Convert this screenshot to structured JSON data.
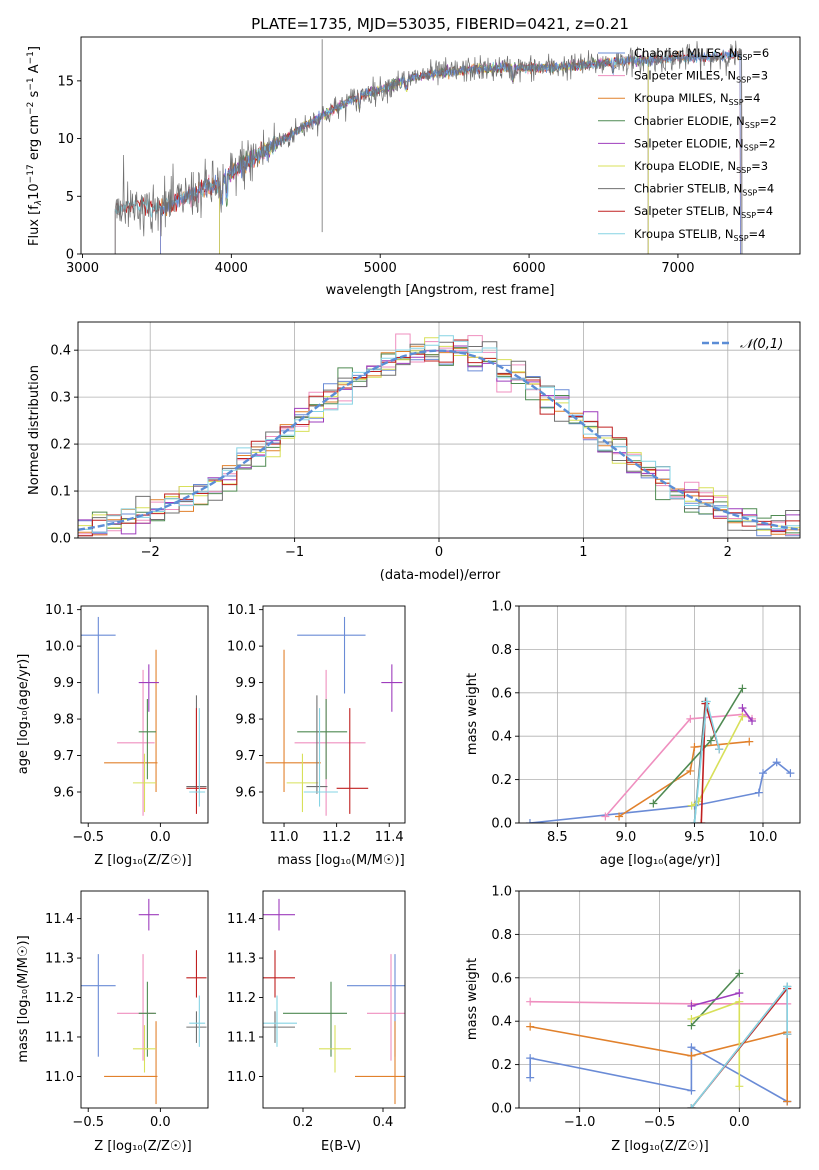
{
  "chart_data": [
    {
      "type": "line",
      "title": "PLATE=1735, MJD=53035, FIBERID=0421, z=0.21",
      "xlabel": "wavelength [Angstrom, rest frame]",
      "ylabel_parts": [
        "Flux [f",
        "λ",
        "10",
        "−17",
        " erg cm",
        "−2",
        " s",
        "−1",
        " A",
        "−1",
        "]"
      ],
      "xlim": [
        2990,
        7820
      ],
      "ylim": [
        0,
        18.8
      ],
      "xticks": [
        3000,
        4000,
        5000,
        6000,
        7000
      ],
      "yticks": [
        0,
        5,
        10,
        15
      ],
      "grid": false,
      "legend": "upper right",
      "spike": {
        "x": 4610,
        "ymin": 1.9,
        "ymax": 18.6
      },
      "series": [
        {
          "name": "Chabrier MILES",
          "nssp": "6",
          "color": "#6a8bd6",
          "x": [
            3525,
            7420
          ]
        },
        {
          "name": "Salpeter MILES",
          "nssp": "3",
          "color": "#ef8fbf",
          "x": [
            3525,
            7420
          ]
        },
        {
          "name": "Kroupa MILES",
          "nssp": "4",
          "color": "#e1812c",
          "x": [
            3525,
            7420
          ]
        },
        {
          "name": "Chabrier ELODIE",
          "nssp": "2",
          "color": "#4f8a52",
          "x": [
            3920,
            6800
          ]
        },
        {
          "name": "Salpeter ELODIE",
          "nssp": "2",
          "color": "#9e3dbd",
          "x": [
            3920,
            6800
          ]
        },
        {
          "name": "Kroupa ELODIE",
          "nssp": "3",
          "color": "#d8e05a",
          "x": [
            3920,
            6800
          ]
        },
        {
          "name": "Chabrier STELIB",
          "nssp": "4",
          "color": "#707070",
          "x": [
            3220,
            7430
          ]
        },
        {
          "name": "Salpeter STELIB",
          "nssp": "4",
          "color": "#c02020",
          "x": [
            3220,
            7430
          ]
        },
        {
          "name": "Kroupa STELIB",
          "nssp": "4",
          "color": "#86d4e4",
          "x": [
            3220,
            7430
          ]
        }
      ],
      "continuum": {
        "x": [
          3220,
          3300,
          3400,
          3500,
          3600,
          3700,
          3800,
          3900,
          4000,
          4100,
          4200,
          4300,
          4400,
          4500,
          4600,
          4700,
          4800,
          4900,
          5000,
          5100,
          5200,
          5300,
          5400,
          5500,
          5600,
          5700,
          5800,
          5900,
          6000,
          6200,
          6400,
          6600,
          6800,
          7000,
          7200,
          7430
        ],
        "y": [
          3.8,
          4.1,
          4.2,
          4.0,
          4.3,
          5.0,
          5.6,
          5.9,
          7.0,
          8.0,
          8.7,
          9.6,
          10.3,
          11.2,
          11.9,
          12.6,
          13.3,
          13.9,
          14.2,
          14.8,
          15.2,
          15.5,
          15.7,
          15.8,
          16.0,
          16.0,
          16.1,
          16.1,
          16.1,
          16.2,
          16.4,
          16.7,
          16.8,
          17.0,
          17.0,
          17.3
        ]
      }
    },
    {
      "type": "bar",
      "xlabel": "(data-model)/error",
      "ylabel": "Normed distribution",
      "xlim": [
        -2.5,
        2.5
      ],
      "ylim": [
        0,
        0.46
      ],
      "xticks": [
        -2,
        -1,
        0,
        1,
        2
      ],
      "xticklabels": [
        "−2",
        "−1",
        "0",
        "1",
        "2"
      ],
      "yticks": [
        0.0,
        0.1,
        0.2,
        0.3,
        0.4
      ],
      "yticklabels": [
        "0.0",
        "0.1",
        "0.2",
        "0.3",
        "0.4"
      ],
      "grid": true,
      "legend": "upper right",
      "legend_label": "𝒩(0,1)",
      "gauss_color": "#5b8dd6",
      "bin_width": 0.1,
      "bin_start": -2.5
    },
    {
      "type": "scatter",
      "xlabel": "Z [log₁₀(Z/Z☉)]",
      "ylabel": "age  [log₁₀(age/yr)]",
      "xlim": [
        -0.55,
        0.33
      ],
      "ylim": [
        9.515,
        10.11
      ],
      "xticks": [
        -0.5,
        0.0
      ],
      "xticklabels": [
        "−0.5",
        "0.0"
      ],
      "yticks": [
        9.6,
        9.7,
        9.8,
        9.9,
        10.0,
        10.1
      ],
      "yticklabels": [
        "9.6",
        "9.7",
        "9.8",
        "9.9",
        "10.0",
        "10.1"
      ],
      "grid": false
    },
    {
      "type": "scatter",
      "xlabel": "mass [log₁₀(M/M☉)]",
      "xlim": [
        10.92,
        11.46
      ],
      "ylim": [
        9.515,
        10.11
      ],
      "xticks": [
        11.0,
        11.2,
        11.4
      ],
      "xticklabels": [
        "11.0",
        "11.2",
        "11.4"
      ],
      "yticks": [
        9.6,
        9.7,
        9.8,
        9.9,
        10.0,
        10.1
      ],
      "yticklabels": [
        "9.6",
        "9.7",
        "9.8",
        "9.9",
        "10.0",
        "10.1"
      ],
      "grid": false
    },
    {
      "type": "line",
      "xlabel": "age  [log₁₀(age/yr)]",
      "ylabel": "mass weight",
      "xlim": [
        8.22,
        10.27
      ],
      "ylim": [
        0,
        1
      ],
      "xticks": [
        8.5,
        9.0,
        9.5,
        10.0
      ],
      "xticklabels": [
        "8.5",
        "9.0",
        "9.5",
        "10.0"
      ],
      "yticks": [
        0.0,
        0.2,
        0.4,
        0.6,
        0.8,
        1.0
      ],
      "yticklabels": [
        "0.0",
        "0.2",
        "0.4",
        "0.6",
        "0.8",
        "1.0"
      ],
      "grid": true
    },
    {
      "type": "scatter",
      "xlabel": "Z [log₁₀(Z/Z☉)]",
      "ylabel": "mass [log₁₀(M/M☉)]",
      "xlim": [
        -0.55,
        0.33
      ],
      "ylim": [
        10.92,
        11.47
      ],
      "xticks": [
        -0.5,
        0.0
      ],
      "xticklabels": [
        "−0.5",
        "0.0"
      ],
      "yticks": [
        11.0,
        11.1,
        11.2,
        11.3,
        11.4
      ],
      "yticklabels": [
        "11.0",
        "11.1",
        "11.2",
        "11.3",
        "11.4"
      ],
      "grid": false
    },
    {
      "type": "scatter",
      "xlabel": "E(B-V)",
      "xlim": [
        0.1,
        0.455
      ],
      "ylim": [
        10.92,
        11.47
      ],
      "xticks": [
        0.2,
        0.4
      ],
      "xticklabels": [
        "0.2",
        "0.4"
      ],
      "yticks": [
        11.0,
        11.1,
        11.2,
        11.3,
        11.4
      ],
      "yticklabels": [
        "11.0",
        "11.1",
        "11.2",
        "11.3",
        "11.4"
      ],
      "grid": false
    },
    {
      "type": "line",
      "xlabel": "Z [log₁₀(Z/Z☉)]",
      "ylabel": "mass weight",
      "xlim": [
        -1.38,
        0.38
      ],
      "ylim": [
        0,
        1
      ],
      "xticks": [
        -1.0,
        -0.5,
        0.0
      ],
      "xticklabels": [
        "−1.0",
        "−0.5",
        "0.0"
      ],
      "yticks": [
        0.0,
        0.2,
        0.4,
        0.6,
        0.8,
        1.0
      ],
      "yticklabels": [
        "0.0",
        "0.2",
        "0.4",
        "0.6",
        "0.8",
        "1.0"
      ],
      "grid": true
    }
  ],
  "models": [
    {
      "color": "#6a8bd6",
      "Z": -0.43,
      "zerr": [
        0.12,
        0.12
      ],
      "age": 10.03,
      "ageerr": [
        0.16,
        0.05
      ],
      "mass": 11.23,
      "masserr": [
        0.18,
        0.08
      ],
      "ebv": 0.43,
      "ebverr": [
        0.12,
        0.08
      ],
      "ssp_age": [
        8.3,
        9.5,
        9.97,
        10.0,
        10.1,
        10.2
      ],
      "ssp_w": [
        0.0,
        0.08,
        0.14,
        0.23,
        0.28,
        0.23
      ],
      "ssp_Z": [
        -1.31,
        -1.31,
        -0.3,
        -0.3,
        0.3,
        0.3
      ],
      "ssp_wZ": [
        0.14,
        0.23,
        0.08,
        0.28,
        0.03,
        0.03
      ]
    },
    {
      "color": "#ef8fbf",
      "Z": -0.12,
      "zerr": [
        0.18,
        0.08
      ],
      "age": 9.735,
      "ageerr": [
        0.2,
        0.2
      ],
      "mass": 11.16,
      "masserr": [
        0.12,
        0.15
      ],
      "ebv": 0.42,
      "ebverr": [
        0.06,
        0.06
      ],
      "ssp_age": [
        8.85,
        9.47,
        9.85,
        9.92
      ],
      "ssp_w": [
        0.03,
        0.48,
        0.5,
        0.48
      ],
      "ssp_Z": [
        -1.31,
        -0.3,
        0.3
      ],
      "ssp_wZ": [
        0.49,
        0.48,
        0.48
      ]
    },
    {
      "color": "#e1812c",
      "Z": -0.03,
      "zerr": [
        0.36,
        0.01
      ],
      "age": 9.68,
      "ageerr": [
        0.08,
        0.31
      ],
      "mass": 11.0,
      "masserr": [
        0.07,
        0.14
      ],
      "ebv": 0.43,
      "ebverr": [
        0.1,
        0.12
      ],
      "ssp_age": [
        8.95,
        9.47,
        9.5,
        9.9
      ],
      "ssp_w": [
        0.03,
        0.24,
        0.35,
        0.375
      ],
      "ssp_Z": [
        -1.31,
        -0.3,
        0.3,
        0.3
      ],
      "ssp_wZ": [
        0.375,
        0.24,
        0.35,
        0.03
      ]
    },
    {
      "color": "#4f8a52",
      "Z": -0.09,
      "zerr": [
        0.06,
        0.06
      ],
      "age": 9.765,
      "ageerr": [
        0.13,
        0.09
      ],
      "mass": 11.16,
      "masserr": [
        0.11,
        0.08
      ],
      "ebv": 0.27,
      "ebverr": [
        0.12,
        0.04
      ],
      "ssp_age": [
        9.2,
        9.62,
        9.85
      ],
      "ssp_w": [
        0.09,
        0.38,
        0.62
      ],
      "ssp_Z": [
        -0.3,
        0.0
      ],
      "ssp_wZ": [
        0.38,
        0.62
      ]
    },
    {
      "color": "#9e3dbd",
      "Z": -0.08,
      "zerr": [
        0.07,
        0.07
      ],
      "age": 9.9,
      "ageerr": [
        0.08,
        0.05
      ],
      "mass": 11.41,
      "masserr": [
        0.04,
        0.04
      ],
      "ebv": 0.14,
      "ebverr": [
        0.04,
        0.04
      ],
      "ssp_age": [
        9.85,
        9.92
      ],
      "ssp_w": [
        0.53,
        0.47
      ],
      "ssp_Z": [
        -0.3,
        0.0
      ],
      "ssp_wZ": [
        0.47,
        0.53
      ]
    },
    {
      "color": "#d8e05a",
      "Z": -0.11,
      "zerr": [
        0.08,
        0.08
      ],
      "age": 9.625,
      "ageerr": [
        0.08,
        0.08
      ],
      "mass": 11.07,
      "masserr": [
        0.06,
        0.06
      ],
      "ebv": 0.28,
      "ebverr": [
        0.04,
        0.04
      ],
      "ssp_age": [
        9.48,
        9.53,
        9.85
      ],
      "ssp_w": [
        0.08,
        0.1,
        0.49
      ],
      "ssp_Z": [
        -0.3,
        0.0,
        0.0
      ],
      "ssp_wZ": [
        0.41,
        0.49,
        0.1
      ]
    },
    {
      "color": "#707070",
      "Z": 0.25,
      "zerr": [
        0.07,
        0.07
      ],
      "age": 9.615,
      "ageerr": [
        0.02,
        0.25
      ],
      "mass": 11.125,
      "masserr": [
        0.04,
        0.04
      ],
      "ebv": 0.13,
      "ebverr": [
        0.05,
        0.05
      ],
      "ssp_age": [
        9.5,
        9.58
      ],
      "ssp_w": [
        0.0,
        0.56
      ],
      "ssp_Z": [
        -0.3,
        0.3
      ],
      "ssp_wZ": [
        0.0,
        0.56
      ]
    },
    {
      "color": "#c02020",
      "Z": 0.25,
      "zerr": [
        0.07,
        0.07
      ],
      "age": 9.61,
      "ageerr": [
        0.07,
        0.22
      ],
      "mass": 11.25,
      "masserr": [
        0.05,
        0.07
      ],
      "ebv": 0.13,
      "ebverr": [
        0.05,
        0.05
      ],
      "ssp_age": [
        9.55,
        9.58,
        9.68
      ],
      "ssp_w": [
        0.0,
        0.55,
        0.34
      ],
      "ssp_Z": [
        -0.3,
        0.3,
        0.3
      ],
      "ssp_wZ": [
        0.0,
        0.55,
        0.34
      ]
    },
    {
      "color": "#86d4e4",
      "Z": 0.27,
      "zerr": [
        0.07,
        0.04
      ],
      "age": 9.6,
      "ageerr": [
        0.04,
        0.23
      ],
      "mass": 11.135,
      "masserr": [
        0.06,
        0.07
      ],
      "ebv": 0.135,
      "ebverr": [
        0.05,
        0.05
      ],
      "ssp_age": [
        9.5,
        9.59,
        9.68
      ],
      "ssp_w": [
        0.0,
        0.56,
        0.34
      ],
      "ssp_Z": [
        -0.3,
        0.3,
        0.3
      ],
      "ssp_wZ": [
        0.0,
        0.56,
        0.34
      ]
    }
  ]
}
